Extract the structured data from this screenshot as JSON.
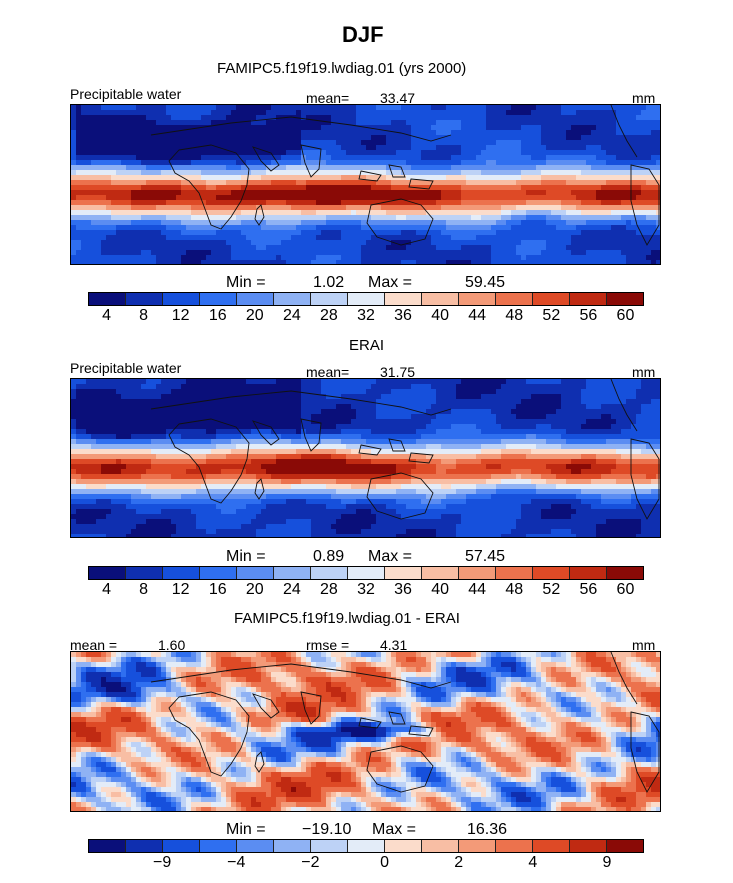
{
  "header": {
    "season": "DJF",
    "model_title": "FAMIPC5.f19f19.lwdiag.01 (yrs 2000)"
  },
  "colors": {
    "scale": [
      "#0a0f7a",
      "#0f2fb0",
      "#1650dc",
      "#2f6ff0",
      "#5b8df2",
      "#8fb2f4",
      "#bdd2f6",
      "#e3ecf8",
      "#fbdccb",
      "#f8bea4",
      "#f39a78",
      "#ec724d",
      "#de4a26",
      "#c02a12",
      "#8a0a06"
    ]
  },
  "chart_data": [
    {
      "type": "heatmap",
      "panel": "model",
      "field_label": "Precipitable water",
      "mean_label": "mean=",
      "mean_value": "33.47",
      "units": "mm",
      "min_label": "Min =",
      "min_value": "1.02",
      "max_label": "Max =",
      "max_value": "59.45",
      "colorbar_ticks": [
        "4",
        "8",
        "12",
        "16",
        "20",
        "24",
        "28",
        "32",
        "36",
        "40",
        "44",
        "48",
        "52",
        "56",
        "60"
      ],
      "range": [
        1.02,
        59.45
      ],
      "tick_offset": 1
    },
    {
      "type": "heatmap",
      "panel": "obs",
      "panel_title": "ERAI",
      "field_label": "Precipitable water",
      "mean_label": "mean=",
      "mean_value": "31.75",
      "units": "mm",
      "min_label": "Min =",
      "min_value": "0.89",
      "max_label": "Max =",
      "max_value": "57.45",
      "colorbar_ticks": [
        "4",
        "8",
        "12",
        "16",
        "20",
        "24",
        "28",
        "32",
        "36",
        "40",
        "44",
        "48",
        "52",
        "56",
        "60"
      ],
      "range": [
        0.89,
        57.45
      ],
      "tick_offset": 1
    },
    {
      "type": "heatmap",
      "panel": "difference",
      "panel_title": "FAMIPC5.f19f19.lwdiag.01 - ERAI",
      "mean_label": "mean =",
      "mean_value": "1.60",
      "rmse_label": "rmse =",
      "rmse_value": "4.31",
      "units": "mm",
      "min_label": "Min =",
      "min_value": "−19.10",
      "max_label": "Max =",
      "max_value": "16.36",
      "colorbar_ticks": [
        "−9",
        "−4",
        "−2",
        "0",
        "2",
        "4",
        "9"
      ],
      "range": [
        -19.1,
        16.36
      ],
      "tick_offset": 2
    }
  ]
}
